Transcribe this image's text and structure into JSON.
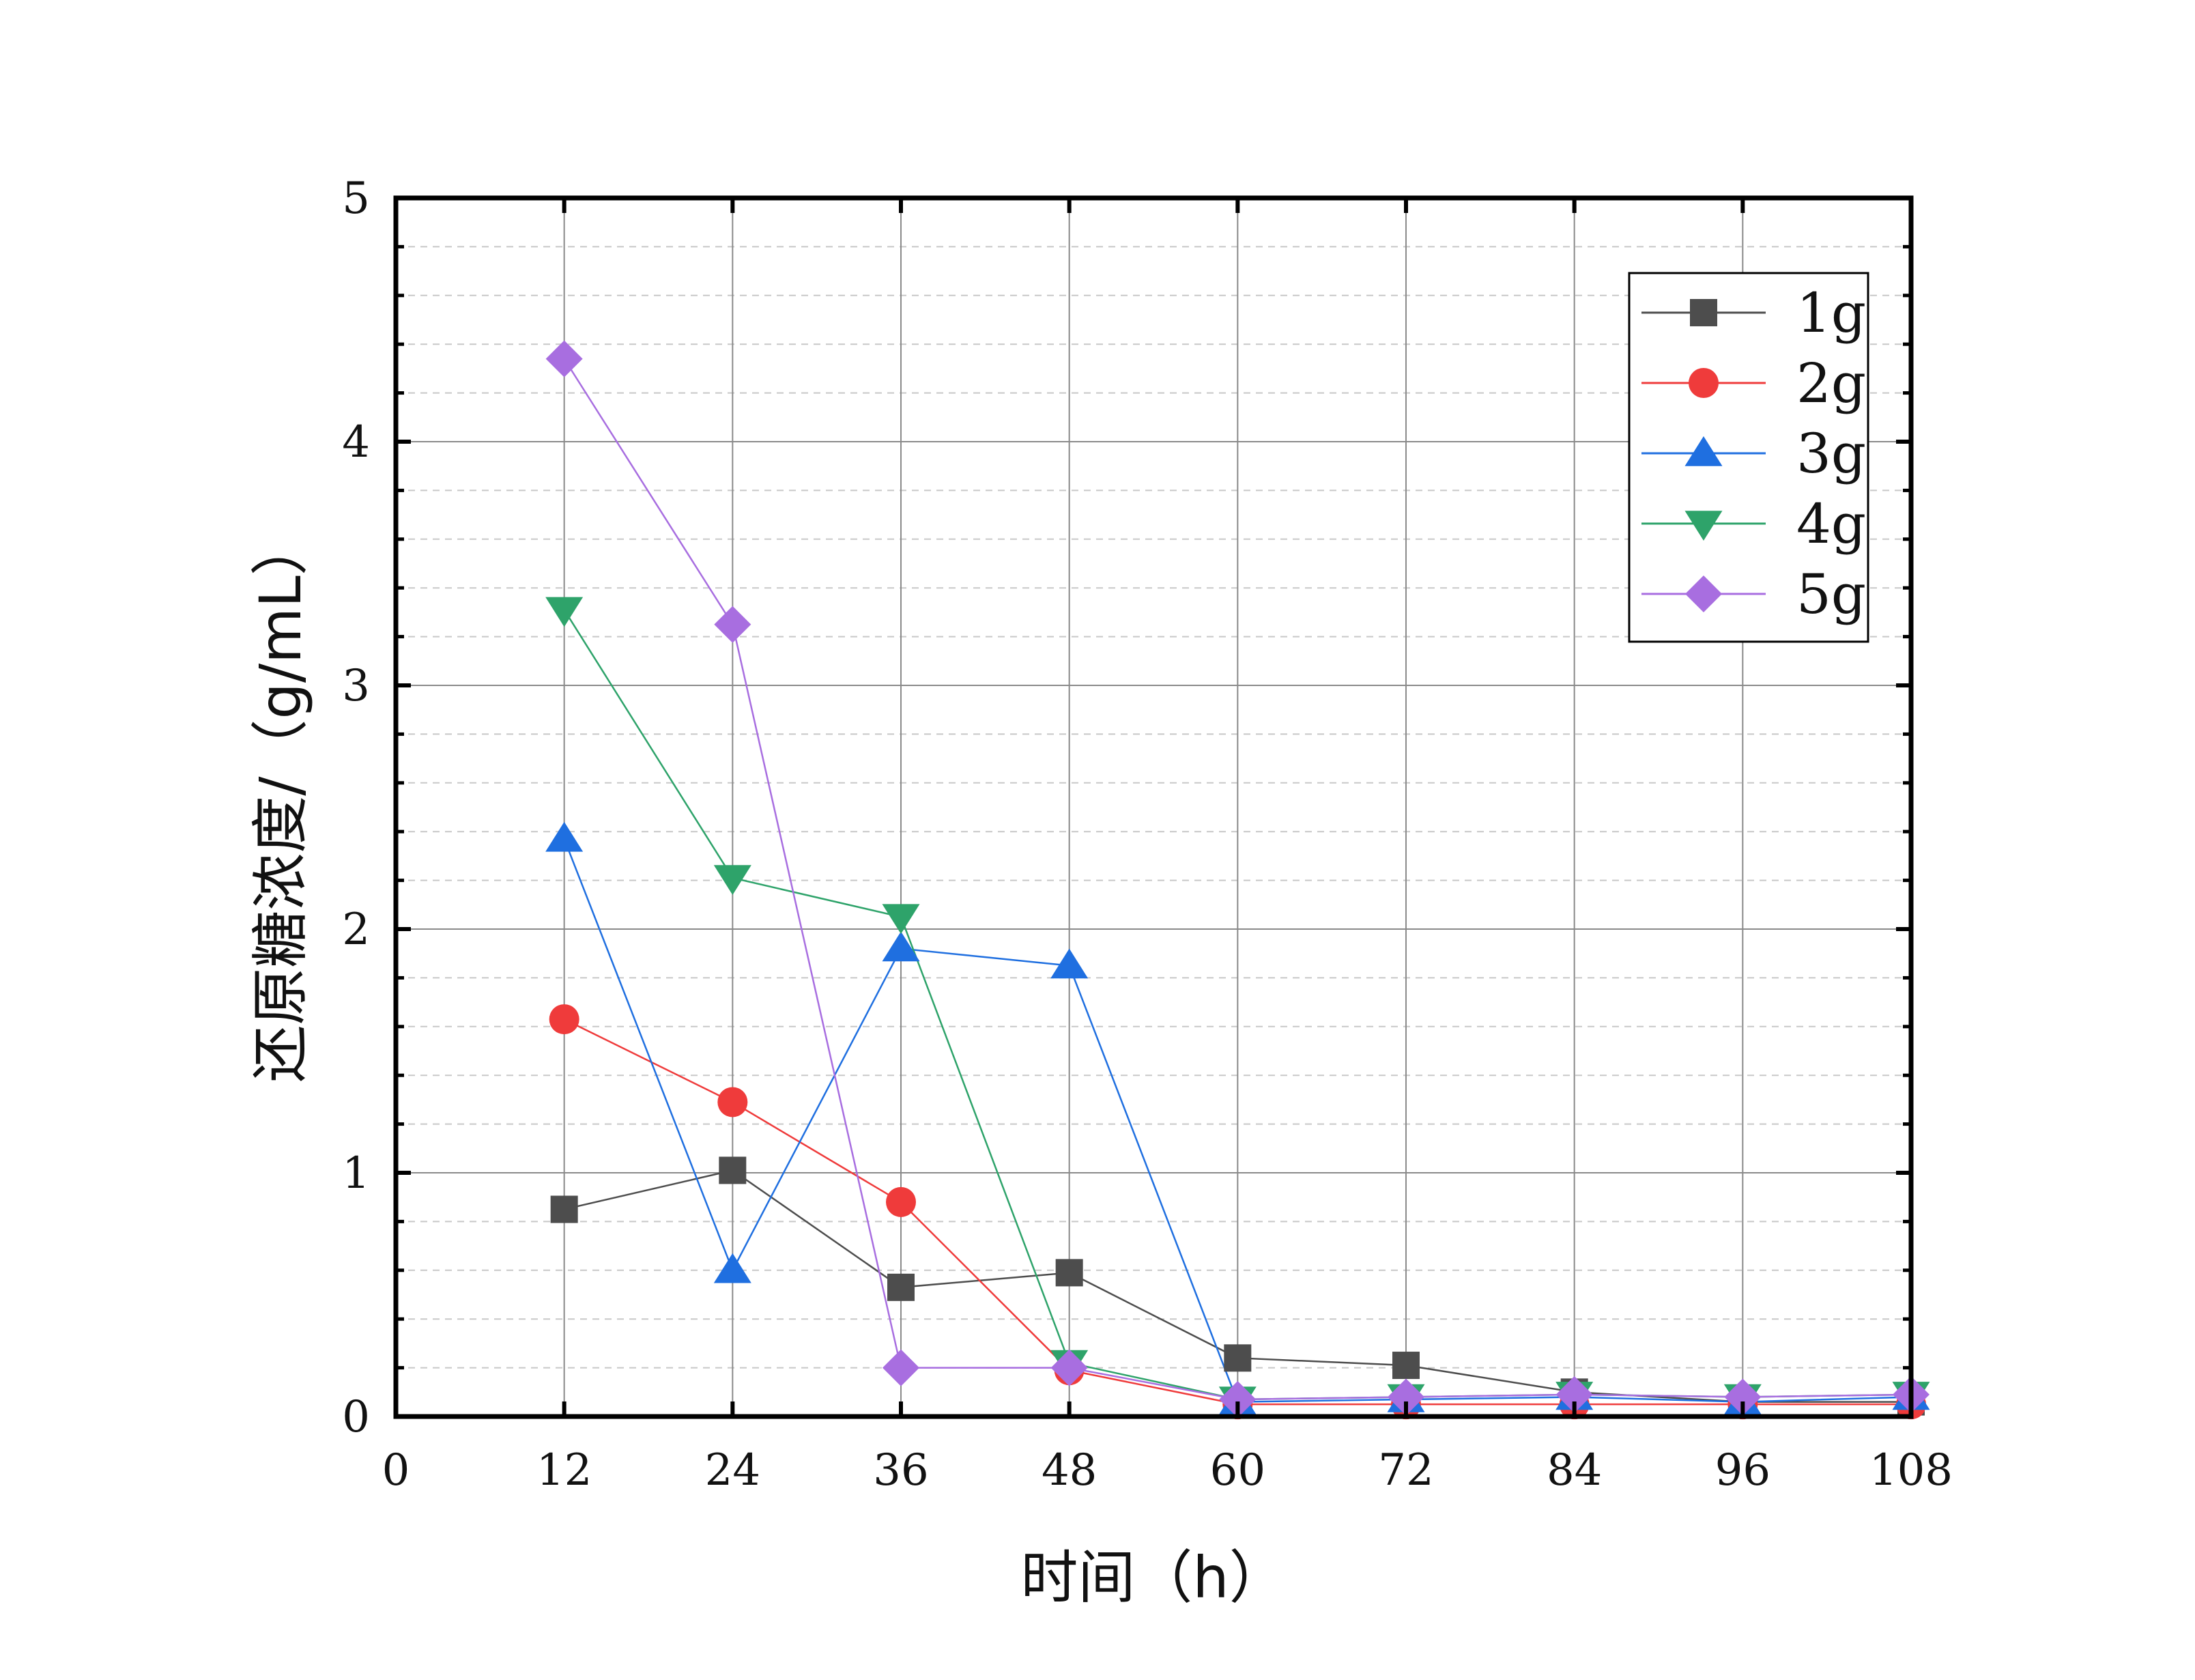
{
  "chart_data": {
    "type": "line",
    "title": "",
    "xlabel": "时间（h）",
    "ylabel": "还原糖浓度/（g/mL）",
    "xlim": [
      0,
      108
    ],
    "ylim": [
      0,
      5
    ],
    "xticks": [
      0,
      12,
      24,
      36,
      48,
      60,
      72,
      84,
      96,
      108
    ],
    "yticks": [
      0,
      1,
      2,
      3,
      4,
      5
    ],
    "grid": true,
    "legend_position": "top-right",
    "x": [
      12,
      24,
      36,
      48,
      60,
      72,
      84,
      96,
      108
    ],
    "series": [
      {
        "name": "1g",
        "color": "#4d4d4d",
        "marker": "square",
        "values": [
          0.85,
          1.01,
          0.53,
          0.59,
          0.24,
          0.21,
          0.1,
          0.06,
          0.06
        ]
      },
      {
        "name": "2g",
        "color": "#ef3b3b",
        "marker": "circle",
        "values": [
          1.63,
          1.29,
          0.88,
          0.19,
          0.05,
          0.05,
          0.05,
          0.05,
          0.05
        ]
      },
      {
        "name": "3g",
        "color": "#1f6fe0",
        "marker": "triangle-up",
        "values": [
          2.37,
          0.6,
          1.92,
          1.85,
          0.06,
          0.07,
          0.08,
          0.06,
          0.08
        ]
      },
      {
        "name": "4g",
        "color": "#2ea36a",
        "marker": "triangle-down",
        "values": [
          3.31,
          2.21,
          2.05,
          0.22,
          0.07,
          0.08,
          0.09,
          0.08,
          0.09
        ]
      },
      {
        "name": "5g",
        "color": "#a86ee0",
        "marker": "diamond",
        "values": [
          4.34,
          3.25,
          0.2,
          0.2,
          0.07,
          0.08,
          0.09,
          0.08,
          0.09
        ]
      }
    ]
  }
}
